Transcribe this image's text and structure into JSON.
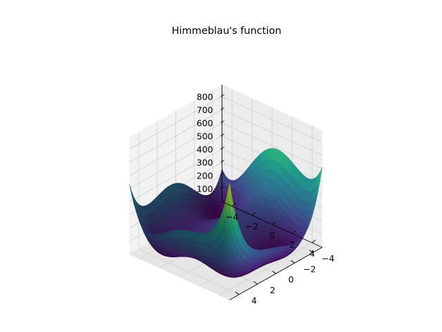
{
  "chart_data": {
    "type": "surface",
    "title": "Himmeblau's function",
    "function": "(x^2 + y - 11)^2 + (x + y^2 - 7)^2",
    "colormap": [
      "#440154",
      "#482878",
      "#3e4989",
      "#31688e",
      "#26828e",
      "#1f9e89",
      "#35b779",
      "#6ece58",
      "#b5de2b",
      "#fde725"
    ],
    "x_range": [
      -5,
      5
    ],
    "y_range": [
      -5,
      5
    ],
    "z_range": [
      0,
      890
    ],
    "x_ticks": [
      -4,
      -2,
      0,
      2,
      4
    ],
    "y_ticks": [
      -4,
      -2,
      0,
      2,
      4
    ],
    "z_ticks": [
      100,
      200,
      300,
      400,
      500,
      600,
      700,
      800
    ],
    "x_tick_labels": [
      "−4",
      "−2",
      "0",
      "2",
      "4"
    ],
    "y_tick_labels": [
      "−4",
      "−2",
      "0",
      "2",
      "4"
    ],
    "z_tick_labels": [
      "100",
      "200",
      "300",
      "400",
      "500",
      "600",
      "700",
      "800"
    ],
    "grid": true,
    "view": {
      "elevation_deg": 50,
      "azimuth_deg": 45
    }
  }
}
